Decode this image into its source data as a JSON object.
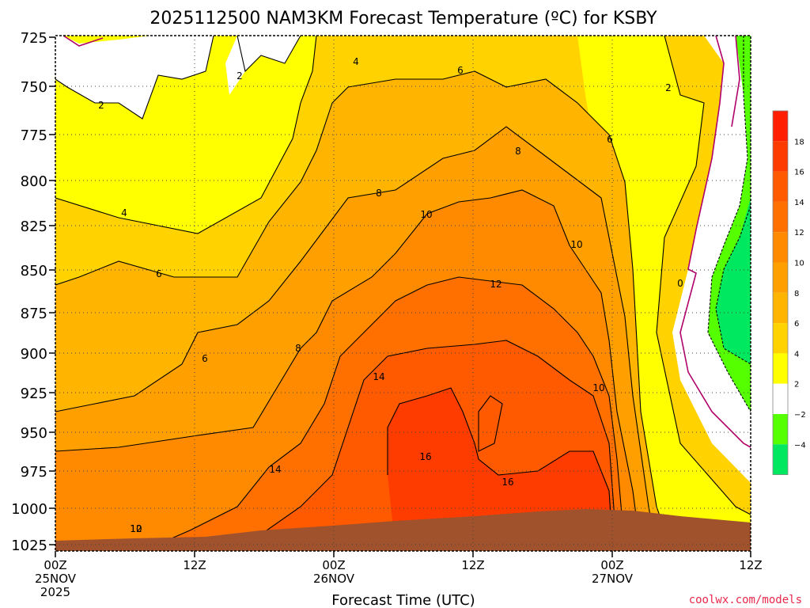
{
  "chart_data": {
    "type": "heatmap",
    "title": "2025112500 NAM3KM Forecast Temperature (ºC) for KSBY",
    "xlabel": "Forecast Time (UTC)",
    "ylabel": "",
    "x_ticks": [
      {
        "line1": "00Z",
        "line2": "25NOV",
        "line3": "2025"
      },
      {
        "line1": "12Z",
        "line2": "",
        "line3": ""
      },
      {
        "line1": "00Z",
        "line2": "26NOV",
        "line3": ""
      },
      {
        "line1": "12Z",
        "line2": "",
        "line3": ""
      },
      {
        "line1": "00Z",
        "line2": "27NOV",
        "line3": ""
      },
      {
        "line1": "12Z",
        "line2": "",
        "line3": ""
      }
    ],
    "x_range_hours": [
      0,
      60
    ],
    "y_ticks": [
      "725",
      "750",
      "775",
      "800",
      "825",
      "850",
      "875",
      "900",
      "925",
      "950",
      "975",
      "1000",
      "1025"
    ],
    "y_range_hpa": [
      725,
      1025
    ],
    "colorbar": {
      "labels": [
        "18",
        "16",
        "14",
        "12",
        "10",
        "8",
        "6",
        "4",
        "2",
        "−2",
        "−4"
      ],
      "bands": [
        {
          "max": 20,
          "min": 18,
          "color": "#ff1e00"
        },
        {
          "max": 18,
          "min": 16,
          "color": "#ff3c00"
        },
        {
          "max": 16,
          "min": 14,
          "color": "#ff5a00"
        },
        {
          "max": 14,
          "min": 12,
          "color": "#ff7000"
        },
        {
          "max": 12,
          "min": 10,
          "color": "#ff8a00"
        },
        {
          "max": 10,
          "min": 8,
          "color": "#ffa000"
        },
        {
          "max": 8,
          "min": 6,
          "color": "#ffb400"
        },
        {
          "max": 6,
          "min": 4,
          "color": "#ffd200"
        },
        {
          "max": 4,
          "min": 2,
          "color": "#ffff00"
        },
        {
          "max": 2,
          "min": -2,
          "color": "#ffffff"
        },
        {
          "max": -2,
          "min": -4,
          "color": "#55ff00"
        },
        {
          "max": -4,
          "min": -6,
          "color": "#00e860"
        }
      ]
    },
    "contour_labels": [
      "2",
      "2",
      "4",
      "6",
      "2",
      "4",
      "6",
      "8",
      "6",
      "8",
      "10",
      "10",
      "6",
      "12",
      "0",
      "8",
      "10",
      "14",
      "14",
      "12",
      "16",
      "16",
      "10"
    ],
    "ground_color": "#a0522d",
    "freezing_line_color": "#b0006a"
  },
  "footer": {
    "credit": "coolwx.com/models"
  }
}
